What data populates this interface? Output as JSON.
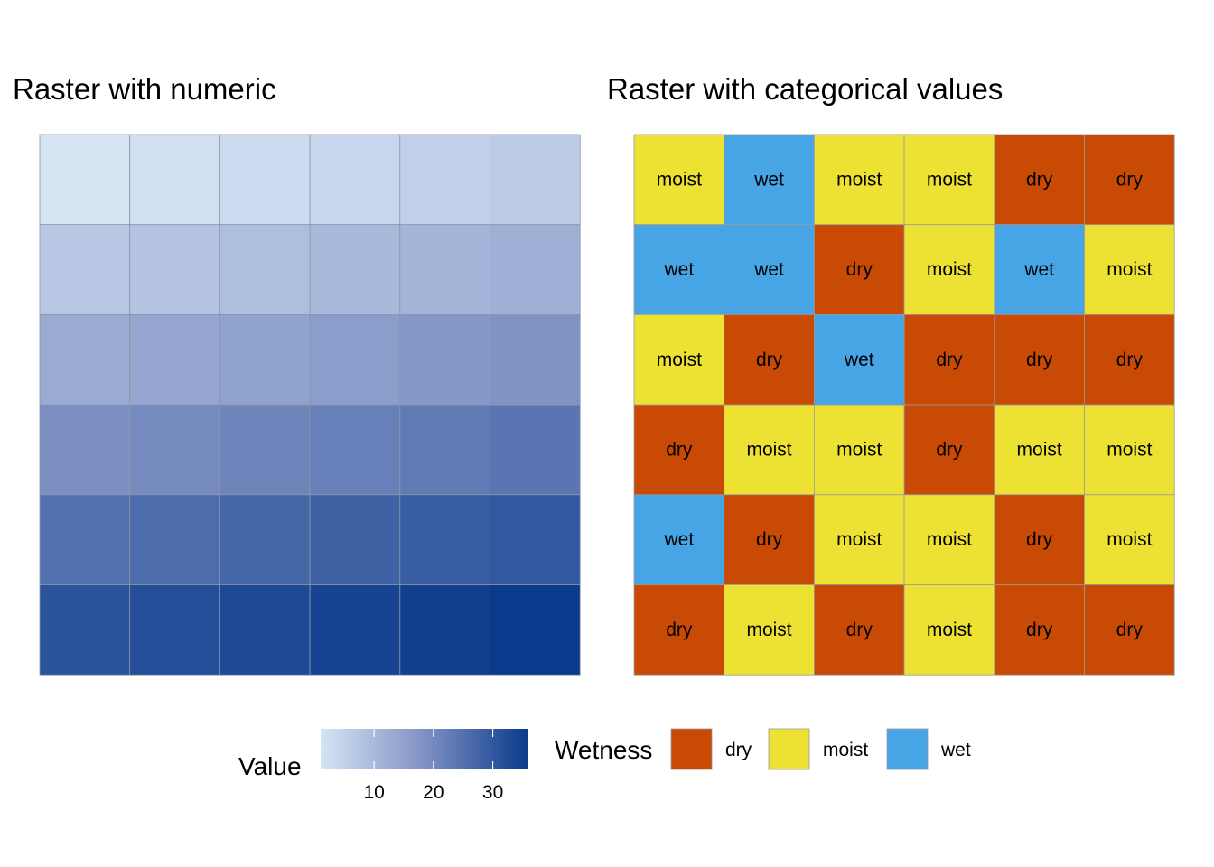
{
  "chart_data": [
    {
      "type": "heatmap",
      "title": "Raster with numeric",
      "xlabel": "",
      "ylabel": "",
      "rows": 6,
      "cols": 6,
      "values": [
        [
          1,
          2,
          3,
          4,
          5,
          6
        ],
        [
          7,
          8,
          9,
          10,
          11,
          12
        ],
        [
          13,
          14,
          15,
          16,
          17,
          18
        ],
        [
          19,
          20,
          21,
          22,
          23,
          24
        ],
        [
          25,
          26,
          27,
          28,
          29,
          30
        ],
        [
          31,
          32,
          33,
          34,
          35,
          36
        ]
      ],
      "color_scale": {
        "low": "#d6e4f4",
        "mid": "#7f91c4",
        "high": "#0a3a8b",
        "range": [
          1,
          36
        ]
      },
      "grid_color": "#8c96a6",
      "legend": {
        "title": "Value",
        "ticks": [
          10,
          20,
          30
        ],
        "tick_labels": [
          "10",
          "20",
          "30"
        ],
        "placement": "bottom"
      }
    },
    {
      "type": "heatmap",
      "title": "Raster with categorical values",
      "xlabel": "",
      "ylabel": "",
      "rows": 6,
      "cols": 6,
      "values": [
        [
          "moist",
          "wet",
          "moist",
          "moist",
          "dry",
          "dry"
        ],
        [
          "wet",
          "wet",
          "dry",
          "moist",
          "wet",
          "moist"
        ],
        [
          "moist",
          "dry",
          "wet",
          "dry",
          "dry",
          "dry"
        ],
        [
          "dry",
          "moist",
          "moist",
          "dry",
          "moist",
          "moist"
        ],
        [
          "wet",
          "dry",
          "moist",
          "moist",
          "dry",
          "moist"
        ],
        [
          "dry",
          "moist",
          "dry",
          "moist",
          "dry",
          "dry"
        ]
      ],
      "category_colors": {
        "dry": "#c84a04",
        "moist": "#ede234",
        "wet": "#47a5e5"
      },
      "grid_color": "#9a9a9a",
      "legend": {
        "title": "Wetness",
        "categories": [
          "dry",
          "moist",
          "wet"
        ],
        "placement": "bottom"
      }
    }
  ]
}
